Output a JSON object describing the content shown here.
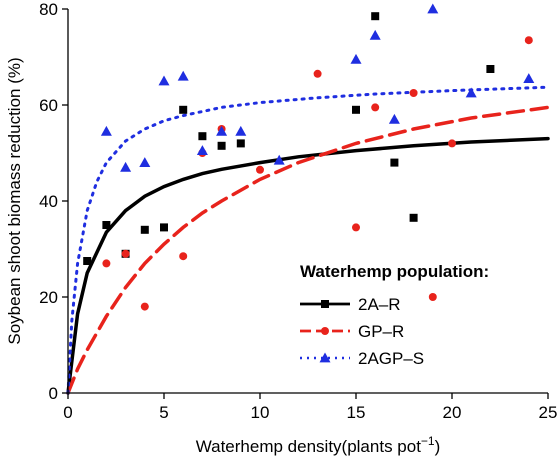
{
  "chart_data": {
    "type": "scatter",
    "title": "",
    "xlabel": "Waterhemp density(plants pot",
    "xlabel_sup": "−1",
    "xlabel_suffix": ")",
    "ylabel": "Soybean shoot biomass reduction (%)",
    "xlim": [
      0,
      25
    ],
    "ylim": [
      0,
      80
    ],
    "xticks": [
      0,
      5,
      10,
      15,
      20,
      25
    ],
    "yticks": [
      0,
      20,
      40,
      60,
      80
    ],
    "grid": false,
    "legend": {
      "title": "Waterhemp population:",
      "placement": "bottom-right"
    },
    "series": [
      {
        "name": "2A–R",
        "color": "#000000",
        "marker": "square",
        "line_style": "solid",
        "points": [
          [
            1,
            27.5
          ],
          [
            2,
            35
          ],
          [
            3,
            29
          ],
          [
            4,
            34
          ],
          [
            5,
            34.5
          ],
          [
            6,
            59
          ],
          [
            7,
            53.5
          ],
          [
            8,
            51.5
          ],
          [
            9,
            52
          ],
          [
            15,
            59
          ],
          [
            16,
            78.5
          ],
          [
            17,
            48
          ],
          [
            18,
            36.5
          ],
          [
            22,
            67.5
          ]
        ],
        "fit": [
          [
            0,
            0
          ],
          [
            0.5,
            16.5
          ],
          [
            1,
            25
          ],
          [
            2,
            33.5
          ],
          [
            3,
            38
          ],
          [
            4,
            41
          ],
          [
            5,
            43
          ],
          [
            6,
            44.5
          ],
          [
            7,
            45.7
          ],
          [
            8,
            46.6
          ],
          [
            10,
            48
          ],
          [
            12,
            49.2
          ],
          [
            15,
            50.5
          ],
          [
            18,
            51.5
          ],
          [
            21,
            52.3
          ],
          [
            25,
            53
          ]
        ]
      },
      {
        "name": "GP–R",
        "color": "#e8231c",
        "marker": "circle",
        "line_style": "dashed",
        "points": [
          [
            2,
            27
          ],
          [
            3,
            29
          ],
          [
            4,
            18
          ],
          [
            6,
            28.5
          ],
          [
            7,
            50
          ],
          [
            8,
            55
          ],
          [
            10,
            46.5
          ],
          [
            13,
            66.5
          ],
          [
            15,
            34.5
          ],
          [
            16,
            59.5
          ],
          [
            18,
            62.5
          ],
          [
            19,
            20
          ],
          [
            20,
            52
          ],
          [
            24,
            73.5
          ]
        ],
        "fit": [
          [
            0,
            0
          ],
          [
            0.5,
            5
          ],
          [
            1,
            9
          ],
          [
            2,
            16
          ],
          [
            3,
            22
          ],
          [
            4,
            27
          ],
          [
            5,
            31
          ],
          [
            6,
            34.5
          ],
          [
            7,
            37.5
          ],
          [
            8,
            40
          ],
          [
            10,
            44.5
          ],
          [
            12,
            48
          ],
          [
            15,
            52
          ],
          [
            18,
            55
          ],
          [
            21,
            57.3
          ],
          [
            25,
            59.5
          ]
        ]
      },
      {
        "name": "2AGP–S",
        "color": "#1f2ee0",
        "marker": "triangle",
        "line_style": "dotted",
        "points": [
          [
            2,
            54.5
          ],
          [
            3,
            47
          ],
          [
            4,
            48
          ],
          [
            5,
            65
          ],
          [
            6,
            66
          ],
          [
            7,
            50.5
          ],
          [
            8,
            54.5
          ],
          [
            9,
            54.5
          ],
          [
            11,
            48.5
          ],
          [
            15,
            69.5
          ],
          [
            16,
            74.5
          ],
          [
            17,
            57
          ],
          [
            19,
            80
          ],
          [
            21,
            62.5
          ],
          [
            24,
            65.5
          ]
        ],
        "fit": [
          [
            0,
            0
          ],
          [
            0.2,
            15
          ],
          [
            0.5,
            27
          ],
          [
            1,
            38
          ],
          [
            1.5,
            44
          ],
          [
            2,
            48
          ],
          [
            3,
            52.5
          ],
          [
            4,
            55
          ],
          [
            5,
            56.7
          ],
          [
            6,
            57.8
          ],
          [
            8,
            59.5
          ],
          [
            10,
            60.5
          ],
          [
            13,
            61.5
          ],
          [
            16,
            62.3
          ],
          [
            20,
            63
          ],
          [
            25,
            63.7
          ]
        ]
      }
    ]
  }
}
